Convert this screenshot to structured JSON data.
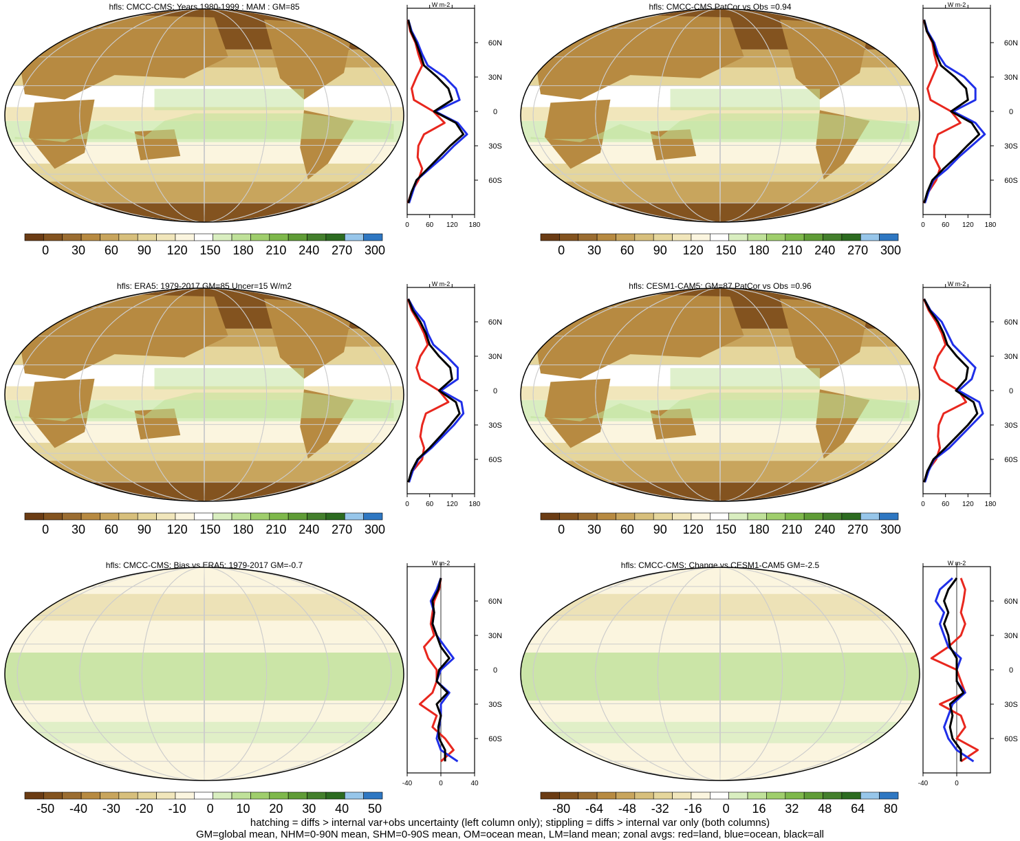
{
  "colors": {
    "abs_palette": [
      "#6b3c14",
      "#83531f",
      "#9b6d31",
      "#b78a41",
      "#c8a55d",
      "#d7bf7c",
      "#e5d69c",
      "#f1e6bb",
      "#fbf5df",
      "#ffffff",
      "#d9eec0",
      "#bfe199",
      "#9fce6c",
      "#7eb84b",
      "#5f9c36",
      "#437f2c",
      "#2c6b20",
      "#97c6ea",
      "#2e77c2"
    ],
    "diff_palette": [
      "#6b3c14",
      "#83531f",
      "#9b6d31",
      "#b78a41",
      "#c8a55d",
      "#d7bf7c",
      "#e5d69c",
      "#f1e6bb",
      "#fbf5df",
      "#ffffff",
      "#d9eec0",
      "#bfe199",
      "#9fce6c",
      "#7eb84b",
      "#5f9c36",
      "#437f2c",
      "#2c6b20",
      "#97c6ea",
      "#2e77c2"
    ],
    "land": "#e8271e",
    "ocean": "#1f2fe8",
    "all": "#000000"
  },
  "panels": [
    {
      "id": "model",
      "title": "hfls: CMCC-CMS: Years 1980-1999 : MAM : GM=85",
      "colorbar_labels": [
        "0",
        "30",
        "60",
        "90",
        "120",
        "150",
        "180",
        "210",
        "240",
        "270",
        "300"
      ],
      "chart_data": {
        "type": "line",
        "xlabel": "W m-2",
        "xlim": [
          0,
          180
        ],
        "xticks": [
          "0",
          "60",
          "120",
          "180"
        ],
        "ylim": [
          -90,
          90
        ],
        "yticks": [
          "60N",
          "30N",
          "0",
          "30S",
          "60S"
        ],
        "lat": [
          80,
          70,
          60,
          50,
          40,
          30,
          20,
          10,
          0,
          -10,
          -20,
          -30,
          -40,
          -50,
          -60,
          -70,
          -80
        ],
        "series": [
          {
            "name": "land",
            "values": [
              2,
              8,
              22,
              30,
              40,
              25,
              12,
              18,
              70,
              100,
              45,
              30,
              28,
              40,
              30,
              12,
              2
            ]
          },
          {
            "name": "ocean",
            "values": [
              3,
              12,
              28,
              40,
              55,
              100,
              130,
              140,
              75,
              135,
              160,
              125,
              95,
              60,
              25,
              15,
              5
            ]
          },
          {
            "name": "all",
            "values": [
              3,
              10,
              24,
              35,
              45,
              80,
              110,
              120,
              72,
              130,
              150,
              115,
              85,
              55,
              25,
              12,
              3
            ]
          }
        ]
      }
    },
    {
      "id": "model-patcor",
      "title": "hfls: CMCC-CMS PatCor vs Obs =0.94",
      "colorbar_labels": [
        "0",
        "30",
        "60",
        "90",
        "120",
        "150",
        "180",
        "210",
        "240",
        "270",
        "300"
      ],
      "chart_data": {
        "type": "line",
        "xlabel": "W m-2",
        "xlim": [
          0,
          180
        ],
        "xticks": [
          "0",
          "60",
          "120",
          "180"
        ],
        "ylim": [
          -90,
          90
        ],
        "yticks": [
          "60N",
          "30N",
          "0",
          "30S",
          "60S"
        ],
        "lat": [
          80,
          70,
          60,
          50,
          40,
          30,
          20,
          10,
          0,
          -10,
          -20,
          -30,
          -40,
          -50,
          -60,
          -70,
          -80
        ],
        "series": [
          {
            "name": "land",
            "values": [
              2,
              10,
              25,
              30,
              38,
              25,
              12,
              20,
              75,
              100,
              40,
              30,
              30,
              45,
              35,
              15,
              2
            ]
          },
          {
            "name": "ocean",
            "values": [
              3,
              12,
              30,
              40,
              60,
              110,
              140,
              140,
              80,
              140,
              165,
              130,
              95,
              65,
              28,
              15,
              5
            ]
          },
          {
            "name": "all",
            "values": [
              3,
              10,
              27,
              35,
              48,
              85,
              115,
              120,
              75,
              130,
              150,
              118,
              88,
              55,
              25,
              12,
              3
            ]
          }
        ]
      }
    },
    {
      "id": "obs",
      "title": "hfls: ERA5: 1979-2017 GM=85 Uncer=15 W/m2",
      "colorbar_labels": [
        "0",
        "30",
        "60",
        "90",
        "120",
        "150",
        "180",
        "210",
        "240",
        "270",
        "300"
      ],
      "chart_data": {
        "type": "line",
        "xlabel": "W m-2",
        "xlim": [
          0,
          180
        ],
        "xticks": [
          "0",
          "60",
          "120",
          "180"
        ],
        "ylim": [
          -90,
          90
        ],
        "yticks": [
          "60N",
          "30N",
          "0",
          "30S",
          "60S"
        ],
        "lat": [
          80,
          70,
          60,
          50,
          40,
          30,
          20,
          10,
          0,
          -10,
          -20,
          -30,
          -40,
          -50,
          -60,
          -70,
          -80
        ],
        "series": [
          {
            "name": "land",
            "values": [
              2,
              12,
              30,
              45,
              55,
              35,
              25,
              35,
              85,
              110,
              50,
              40,
              35,
              45,
              40,
              15,
              3
            ]
          },
          {
            "name": "ocean",
            "values": [
              3,
              20,
              45,
              55,
              70,
              105,
              135,
              135,
              90,
              145,
              150,
              125,
              95,
              65,
              30,
              15,
              5
            ]
          },
          {
            "name": "all",
            "values": [
              3,
              15,
              35,
              50,
              60,
              85,
              115,
              120,
              85,
              130,
              140,
              115,
              88,
              60,
              28,
              12,
              3
            ]
          }
        ]
      }
    },
    {
      "id": "ref-model",
      "title": "hfls: CESM1-CAM5: GM=87 PatCor vs Obs =0.96",
      "colorbar_labels": [
        "0",
        "30",
        "60",
        "90",
        "120",
        "150",
        "180",
        "210",
        "240",
        "270",
        "300"
      ],
      "chart_data": {
        "type": "line",
        "xlabel": "W m-2",
        "xlim": [
          0,
          180
        ],
        "xticks": [
          "0",
          "60",
          "120",
          "180"
        ],
        "ylim": [
          -90,
          90
        ],
        "yticks": [
          "60N",
          "30N",
          "0",
          "30S",
          "60S"
        ],
        "lat": [
          80,
          70,
          60,
          50,
          40,
          30,
          20,
          10,
          0,
          -10,
          -20,
          -30,
          -40,
          -50,
          -60,
          -70,
          -80
        ],
        "series": [
          {
            "name": "land",
            "values": [
              2,
              15,
              35,
              50,
              60,
              40,
              30,
              45,
              95,
              115,
              55,
              42,
              40,
              45,
              35,
              12,
              3
            ]
          },
          {
            "name": "ocean",
            "values": [
              3,
              20,
              50,
              65,
              80,
              110,
              140,
              130,
              95,
              150,
              160,
              130,
              100,
              70,
              30,
              15,
              5
            ]
          },
          {
            "name": "all",
            "values": [
              3,
              18,
              40,
              55,
              65,
              90,
              120,
              115,
              88,
              135,
              145,
              120,
              90,
              60,
              28,
              12,
              3
            ]
          }
        ]
      }
    },
    {
      "id": "bias",
      "title": "hfls: CMCC-CMS: Bias vs ERA5: 1979-2017 GM=-0.7",
      "colorbar_labels": [
        "-50",
        "-40",
        "-30",
        "-20",
        "-10",
        "0",
        "10",
        "20",
        "30",
        "40",
        "50"
      ],
      "chart_data": {
        "type": "line",
        "xlabel": "W m-2",
        "xlim": [
          -40,
          40
        ],
        "xticks": [
          "-40",
          "0",
          "40"
        ],
        "ylim": [
          -90,
          90
        ],
        "yticks": [
          "60N",
          "30N",
          "0",
          "30S",
          "60S"
        ],
        "lat": [
          80,
          70,
          60,
          50,
          40,
          30,
          20,
          10,
          0,
          -10,
          -20,
          -30,
          -40,
          -50,
          -60,
          -70,
          -80
        ],
        "series": [
          {
            "name": "land",
            "values": [
              0,
              -2,
              -8,
              -10,
              -12,
              -8,
              -20,
              -15,
              -5,
              -5,
              -10,
              -25,
              -5,
              -10,
              5,
              15,
              0
            ]
          },
          {
            "name": "ocean",
            "values": [
              0,
              -5,
              -12,
              -8,
              -10,
              -5,
              5,
              15,
              0,
              -5,
              10,
              0,
              0,
              -2,
              -5,
              0,
              20
            ]
          },
          {
            "name": "all",
            "values": [
              0,
              -3,
              -10,
              -8,
              -10,
              -5,
              0,
              10,
              -2,
              -5,
              8,
              -5,
              0,
              -3,
              -2,
              5,
              5
            ]
          }
        ]
      }
    },
    {
      "id": "change",
      "title": "hfls: CMCC-CMS: Change vs CESM1-CAM5 GM=-2.5",
      "colorbar_labels": [
        "-80",
        "-64",
        "-48",
        "-32",
        "-16",
        "0",
        "16",
        "32",
        "48",
        "64",
        "80"
      ],
      "chart_data": {
        "type": "line",
        "xlabel": "W m-2",
        "xlim": [
          -40,
          40
        ],
        "xticks": [
          "-40",
          "0"
        ],
        "ylim": [
          -90,
          90
        ],
        "yticks": [
          "60N",
          "30N",
          "0",
          "30S",
          "60S"
        ],
        "lat": [
          80,
          70,
          60,
          50,
          40,
          30,
          20,
          10,
          0,
          -10,
          -20,
          -30,
          -40,
          -50,
          -60,
          -70,
          -80
        ],
        "series": [
          {
            "name": "land",
            "values": [
              5,
              10,
              8,
              5,
              10,
              5,
              -10,
              -30,
              0,
              5,
              10,
              -20,
              5,
              10,
              0,
              25,
              5
            ]
          },
          {
            "name": "ocean",
            "values": [
              -5,
              -20,
              -25,
              -15,
              -20,
              -15,
              -10,
              5,
              0,
              0,
              10,
              -5,
              -10,
              -15,
              -10,
              0,
              20
            ]
          },
          {
            "name": "all",
            "values": [
              0,
              -10,
              -15,
              -10,
              -15,
              -10,
              -8,
              0,
              0,
              0,
              8,
              -8,
              -5,
              -8,
              -5,
              5,
              5
            ]
          }
        ]
      }
    }
  ],
  "footer": {
    "line1": "hatching = diffs > internal var+obs uncertainty (left column only); stippling = diffs > internal var only (both columns)",
    "line2": "GM=global mean, NHM=0-90N mean, SHM=0-90S mean, OM=ocean mean, LM=land mean; zonal avgs: red=land, blue=ocean, black=all"
  }
}
